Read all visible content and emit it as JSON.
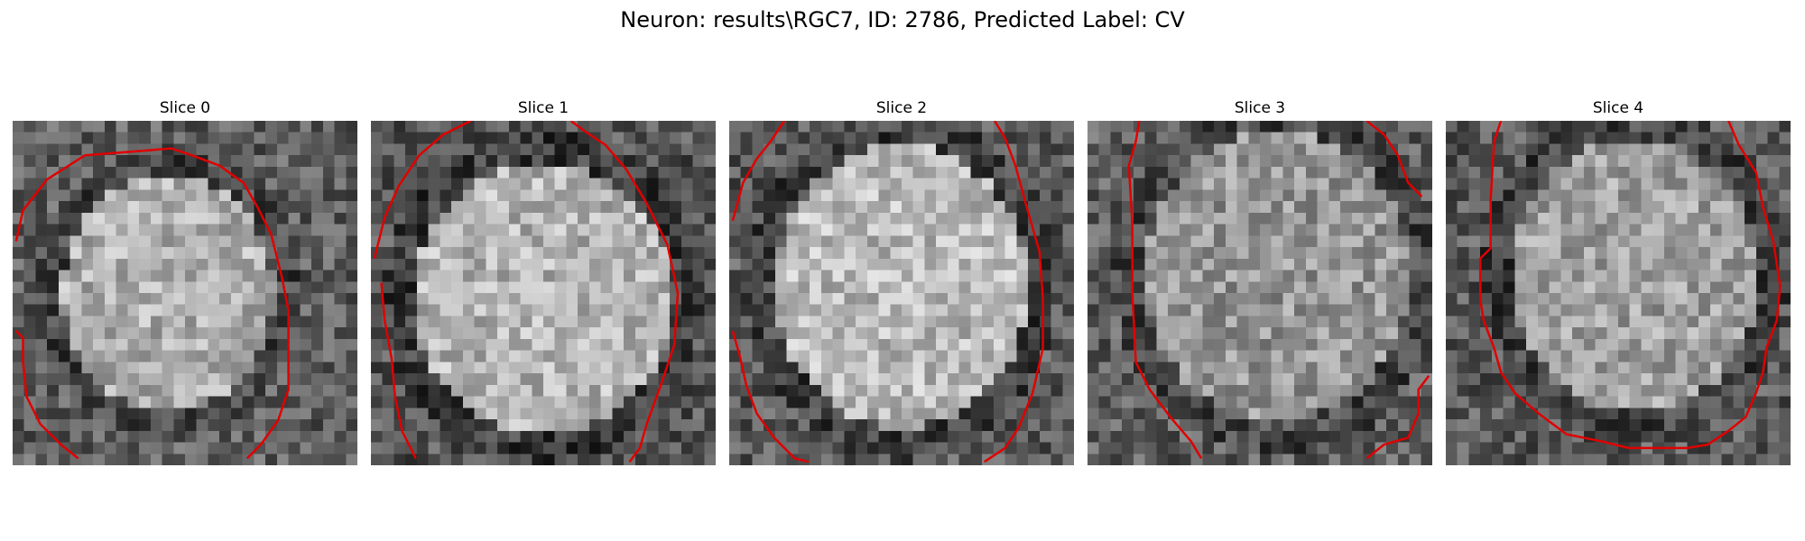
{
  "title": "Neuron: results\\RGC7, ID: 2786, Predicted Label: CV",
  "contour_color": "#e00000",
  "panels": [
    {
      "label": "Slice 0",
      "contours": [
        [
          [
            0.01,
            0.35
          ],
          [
            0.03,
            0.26
          ],
          [
            0.1,
            0.17
          ],
          [
            0.21,
            0.1
          ],
          [
            0.34,
            0.09
          ],
          [
            0.46,
            0.08
          ],
          [
            0.52,
            0.1
          ],
          [
            0.6,
            0.13
          ],
          [
            0.67,
            0.18
          ],
          [
            0.71,
            0.25
          ],
          [
            0.75,
            0.33
          ],
          [
            0.78,
            0.45
          ],
          [
            0.8,
            0.55
          ],
          [
            0.8,
            0.66
          ],
          [
            0.8,
            0.78
          ],
          [
            0.77,
            0.87
          ],
          [
            0.72,
            0.94
          ],
          [
            0.68,
            0.98
          ]
        ],
        [
          [
            0.01,
            0.61
          ],
          [
            0.03,
            0.63
          ],
          [
            0.03,
            0.7
          ],
          [
            0.04,
            0.8
          ],
          [
            0.08,
            0.88
          ],
          [
            0.14,
            0.94
          ],
          [
            0.19,
            0.98
          ]
        ]
      ]
    },
    {
      "label": "Slice 1",
      "contours": [
        [
          [
            0.01,
            0.4
          ],
          [
            0.04,
            0.28
          ],
          [
            0.08,
            0.19
          ],
          [
            0.14,
            0.1
          ],
          [
            0.21,
            0.04
          ],
          [
            0.29,
            0.0
          ]
        ],
        [
          [
            0.58,
            0.0
          ],
          [
            0.62,
            0.03
          ],
          [
            0.68,
            0.07
          ],
          [
            0.74,
            0.14
          ],
          [
            0.8,
            0.24
          ],
          [
            0.86,
            0.36
          ],
          [
            0.89,
            0.5
          ],
          [
            0.88,
            0.65
          ],
          [
            0.84,
            0.77
          ],
          [
            0.8,
            0.88
          ],
          [
            0.78,
            0.95
          ],
          [
            0.75,
            0.99
          ]
        ],
        [
          [
            0.03,
            0.47
          ],
          [
            0.04,
            0.58
          ],
          [
            0.06,
            0.69
          ],
          [
            0.07,
            0.8
          ],
          [
            0.09,
            0.9
          ],
          [
            0.13,
            0.98
          ]
        ]
      ]
    },
    {
      "label": "Slice 2",
      "contours": [
        [
          [
            0.01,
            0.29
          ],
          [
            0.04,
            0.18
          ],
          [
            0.08,
            0.11
          ],
          [
            0.12,
            0.06
          ],
          [
            0.16,
            0.0
          ]
        ],
        [
          [
            0.77,
            0.0
          ],
          [
            0.8,
            0.05
          ],
          [
            0.83,
            0.13
          ],
          [
            0.86,
            0.24
          ],
          [
            0.9,
            0.38
          ],
          [
            0.91,
            0.52
          ],
          [
            0.91,
            0.66
          ],
          [
            0.88,
            0.79
          ],
          [
            0.84,
            0.89
          ],
          [
            0.8,
            0.95
          ],
          [
            0.74,
            0.99
          ]
        ],
        [
          [
            0.01,
            0.61
          ],
          [
            0.03,
            0.68
          ],
          [
            0.05,
            0.77
          ],
          [
            0.08,
            0.85
          ],
          [
            0.13,
            0.92
          ],
          [
            0.19,
            0.98
          ],
          [
            0.23,
            0.99
          ]
        ]
      ]
    },
    {
      "label": "Slice 3",
      "contours": [
        [
          [
            0.15,
            0.0
          ],
          [
            0.14,
            0.06
          ],
          [
            0.12,
            0.13
          ],
          [
            0.13,
            0.3
          ],
          [
            0.13,
            0.5
          ],
          [
            0.14,
            0.7
          ],
          [
            0.18,
            0.78
          ],
          [
            0.24,
            0.86
          ],
          [
            0.3,
            0.93
          ],
          [
            0.33,
            0.98
          ]
        ],
        [
          [
            0.81,
            0.0
          ],
          [
            0.86,
            0.04
          ],
          [
            0.9,
            0.1
          ],
          [
            0.93,
            0.18
          ],
          [
            0.97,
            0.22
          ]
        ],
        [
          [
            0.99,
            0.74
          ],
          [
            0.96,
            0.78
          ],
          [
            0.96,
            0.85
          ],
          [
            0.93,
            0.92
          ],
          [
            0.86,
            0.94
          ],
          [
            0.81,
            0.98
          ]
        ]
      ]
    },
    {
      "label": "Slice 4",
      "contours": [
        [
          [
            0.16,
            0.0
          ],
          [
            0.14,
            0.06
          ],
          [
            0.13,
            0.23
          ],
          [
            0.13,
            0.37
          ],
          [
            0.1,
            0.4
          ],
          [
            0.1,
            0.52
          ],
          [
            0.11,
            0.58
          ],
          [
            0.14,
            0.66
          ],
          [
            0.16,
            0.73
          ],
          [
            0.2,
            0.79
          ],
          [
            0.27,
            0.85
          ],
          [
            0.35,
            0.91
          ],
          [
            0.45,
            0.93
          ],
          [
            0.53,
            0.95
          ],
          [
            0.62,
            0.95
          ],
          [
            0.7,
            0.95
          ],
          [
            0.76,
            0.94
          ],
          [
            0.82,
            0.9
          ],
          [
            0.87,
            0.86
          ],
          [
            0.9,
            0.79
          ],
          [
            0.92,
            0.73
          ],
          [
            0.93,
            0.66
          ],
          [
            0.96,
            0.58
          ],
          [
            0.97,
            0.48
          ],
          [
            0.95,
            0.35
          ],
          [
            0.92,
            0.25
          ],
          [
            0.9,
            0.15
          ],
          [
            0.85,
            0.07
          ],
          [
            0.82,
            0.0
          ]
        ]
      ]
    }
  ]
}
